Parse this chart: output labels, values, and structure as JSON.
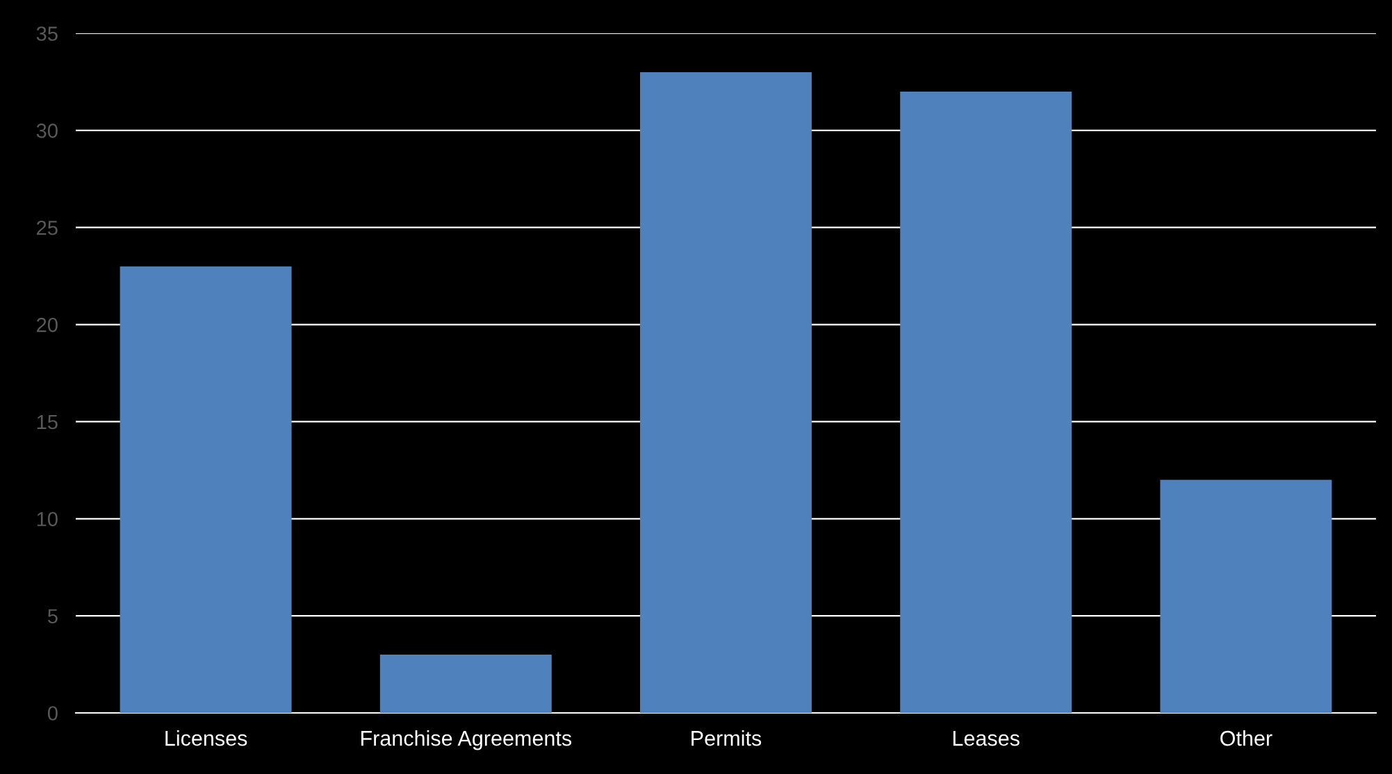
{
  "chart_data": {
    "type": "bar",
    "categories": [
      "Licenses",
      "Franchise Agreements",
      "Permits",
      "Leases",
      "Other"
    ],
    "values": [
      23,
      3,
      33,
      32,
      12
    ],
    "color": "#4f81bd",
    "ylim": [
      0,
      35
    ],
    "yticks": [
      0,
      5,
      10,
      15,
      20,
      25,
      30,
      35
    ],
    "grid": "y"
  }
}
